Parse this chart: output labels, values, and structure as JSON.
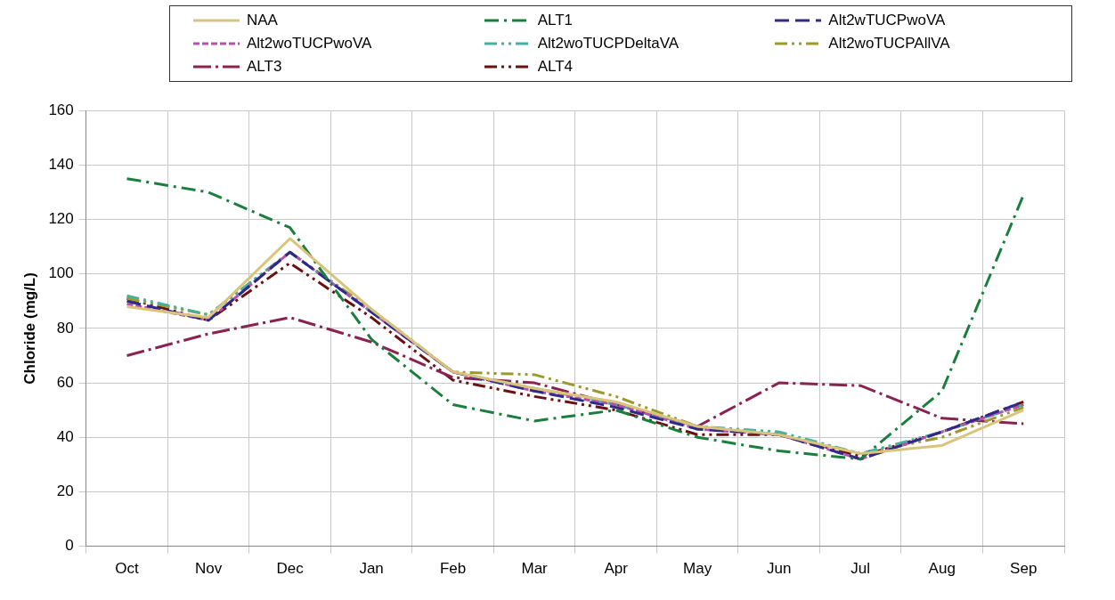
{
  "chart_data": {
    "type": "line",
    "ylabel": "Chloride (mg/L)",
    "categories": [
      "Oct",
      "Nov",
      "Dec",
      "Jan",
      "Feb",
      "Mar",
      "Apr",
      "May",
      "Jun",
      "Jul",
      "Aug",
      "Sep"
    ],
    "ylim": [
      0,
      160
    ],
    "yticks": [
      0,
      20,
      40,
      60,
      80,
      100,
      120,
      140,
      160
    ],
    "grid": true,
    "legend": "top",
    "marker": "none",
    "series": [
      {
        "name": "NAA",
        "color": "#d9c47a",
        "line_style": "solid",
        "values": [
          88,
          84,
          113,
          87,
          64,
          58,
          53,
          44,
          41,
          34,
          37,
          50
        ]
      },
      {
        "name": "ALT1",
        "color": "#1a7f3c",
        "line_style": "dashdot",
        "values": [
          135,
          130,
          117,
          76,
          52,
          46,
          50,
          40,
          35,
          32,
          57,
          129
        ]
      },
      {
        "name": "Alt2wTUCPwoVA",
        "color": "#2e2a8c",
        "line_style": "dashed",
        "values": [
          90,
          83,
          108,
          86,
          64,
          57,
          51,
          43,
          41,
          32,
          42,
          53
        ]
      },
      {
        "name": "Alt2woTUCPwoVA",
        "color": "#b84fb0",
        "line_style": "shortdash",
        "values": [
          89,
          83,
          108,
          86,
          64,
          57,
          52,
          43,
          41,
          32,
          42,
          52
        ]
      },
      {
        "name": "Alt2woTUCPDeltaVA",
        "color": "#45b0a0",
        "line_style": "dashdotdot",
        "values": [
          92,
          85,
          108,
          86,
          64,
          58,
          52,
          44,
          42,
          34,
          42,
          52
        ]
      },
      {
        "name": "Alt2woTUCPAllVA",
        "color": "#9a9a30",
        "line_style": "dashdotdot",
        "values": [
          91,
          85,
          108,
          87,
          64,
          63,
          55,
          44,
          41,
          34,
          40,
          51
        ]
      },
      {
        "name": "ALT3",
        "color": "#8b2252",
        "line_style": "longdashdot",
        "values": [
          70,
          78,
          84,
          75,
          62,
          60,
          52,
          44,
          60,
          59,
          47,
          45
        ]
      },
      {
        "name": "ALT4",
        "color": "#6b1010",
        "line_style": "dashdotdot",
        "values": [
          91,
          83,
          104,
          84,
          61,
          55,
          50,
          41,
          41,
          33,
          42,
          53
        ]
      }
    ]
  }
}
